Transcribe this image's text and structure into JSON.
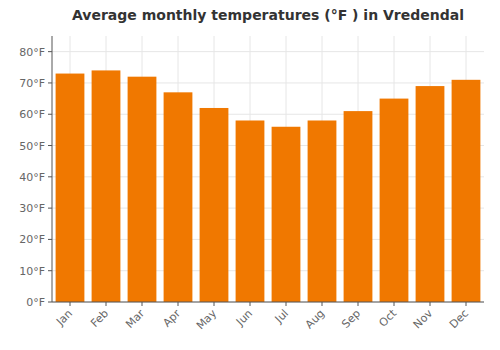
{
  "chart_data": {
    "type": "bar",
    "title": "Average monthly temperatures (°F ) in Vredendal",
    "categories": [
      "Jan",
      "Feb",
      "Mar",
      "Apr",
      "May",
      "Jun",
      "Jul",
      "Aug",
      "Sep",
      "Oct",
      "Nov",
      "Dec"
    ],
    "values": [
      73,
      74,
      72,
      67,
      62,
      58,
      56,
      58,
      61,
      65,
      69,
      71
    ],
    "color": "#F07800",
    "ylim": [
      0,
      85
    ],
    "yticks": [
      {
        "value": 0,
        "label": "0°F"
      },
      {
        "value": 10,
        "label": "10°F"
      },
      {
        "value": 20,
        "label": "20°F"
      },
      {
        "value": 30,
        "label": "30°F"
      },
      {
        "value": 40,
        "label": "40°F"
      },
      {
        "value": 50,
        "label": "50°F"
      },
      {
        "value": 60,
        "label": "60°F"
      },
      {
        "value": 70,
        "label": "70°F"
      },
      {
        "value": 80,
        "label": "80°F"
      }
    ],
    "grid": true
  }
}
